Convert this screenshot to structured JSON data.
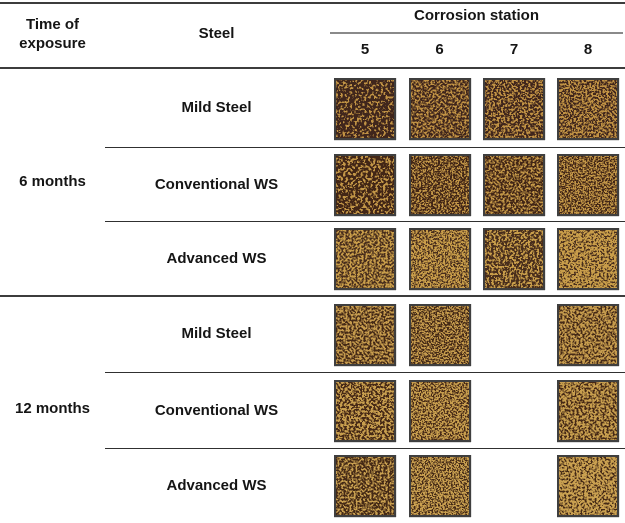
{
  "table": {
    "headers": {
      "time": "Time of exposure",
      "steel": "Steel",
      "station_group": "Corrosion station",
      "stations": [
        "5",
        "6",
        "7",
        "8"
      ]
    },
    "colors": {
      "rule_dark": "#3c3c3c",
      "rule_thin": "#303030",
      "rule_station_gray": "#8a8a8a",
      "photo_border": "#3f3f3f"
    },
    "blocks": [
      {
        "time": "6 months",
        "rows": [
          {
            "steel": "Mild Steel",
            "rust_dark": "#40261a",
            "rust_light": "#c09244",
            "samples": [
              {
                "station": "5",
                "seed": 3,
                "dark_ratio": 0.565,
                "grain": 0.42
              },
              {
                "station": "6",
                "seed": 7,
                "dark_ratio": 0.52,
                "grain": 0.5
              },
              {
                "station": "7",
                "seed": 12,
                "dark_ratio": 0.53,
                "grain": 0.48
              },
              {
                "station": "8",
                "seed": 5,
                "dark_ratio": 0.5,
                "grain": 0.52
              }
            ]
          },
          {
            "steel": "Conventional WS",
            "rust_dark": "#432817",
            "rust_light": "#c29647",
            "samples": [
              {
                "station": "5",
                "seed": 9,
                "dark_ratio": 0.555,
                "grain": 0.4
              },
              {
                "station": "6",
                "seed": 14,
                "dark_ratio": 0.52,
                "grain": 0.58
              },
              {
                "station": "7",
                "seed": 21,
                "dark_ratio": 0.52,
                "grain": 0.5
              },
              {
                "station": "8",
                "seed": 8,
                "dark_ratio": 0.5,
                "grain": 0.62
              }
            ]
          },
          {
            "steel": "Advanced WS",
            "rust_dark": "#4a2d1a",
            "rust_light": "#c89d4a",
            "samples": [
              {
                "station": "5",
                "seed": 16,
                "dark_ratio": 0.5,
                "grain": 0.5
              },
              {
                "station": "6",
                "seed": 4,
                "dark_ratio": 0.47,
                "grain": 0.58
              },
              {
                "station": "7",
                "seed": 19,
                "dark_ratio": 0.535,
                "grain": 0.44
              },
              {
                "station": "8",
                "seed": 11,
                "dark_ratio": 0.46,
                "grain": 0.52
              }
            ]
          }
        ]
      },
      {
        "time": "12 months",
        "rows": [
          {
            "steel": "Mild Steel",
            "rust_dark": "#452a18",
            "rust_light": "#c59b4d",
            "samples": [
              {
                "station": "5",
                "seed": 23,
                "dark_ratio": 0.51,
                "grain": 0.5
              },
              {
                "station": "6",
                "seed": 27,
                "dark_ratio": 0.5,
                "grain": 0.6
              },
              null,
              {
                "station": "8",
                "seed": 31,
                "dark_ratio": 0.48,
                "grain": 0.5
              }
            ]
          },
          {
            "steel": "Conventional WS",
            "rust_dark": "#472b19",
            "rust_light": "#c79e4e",
            "samples": [
              {
                "station": "5",
                "seed": 35,
                "dark_ratio": 0.51,
                "grain": 0.45
              },
              {
                "station": "6",
                "seed": 39,
                "dark_ratio": 0.475,
                "grain": 0.58
              },
              null,
              {
                "station": "8",
                "seed": 41,
                "dark_ratio": 0.47,
                "grain": 0.5
              }
            ]
          },
          {
            "steel": "Advanced WS",
            "rust_dark": "#452a18",
            "rust_light": "#c9a050",
            "samples": [
              {
                "station": "5",
                "seed": 45,
                "dark_ratio": 0.525,
                "grain": 0.5
              },
              {
                "station": "6",
                "seed": 49,
                "dark_ratio": 0.47,
                "grain": 0.62
              },
              null,
              {
                "station": "8",
                "seed": 53,
                "dark_ratio": 0.455,
                "grain": 0.5
              }
            ]
          }
        ]
      }
    ]
  }
}
